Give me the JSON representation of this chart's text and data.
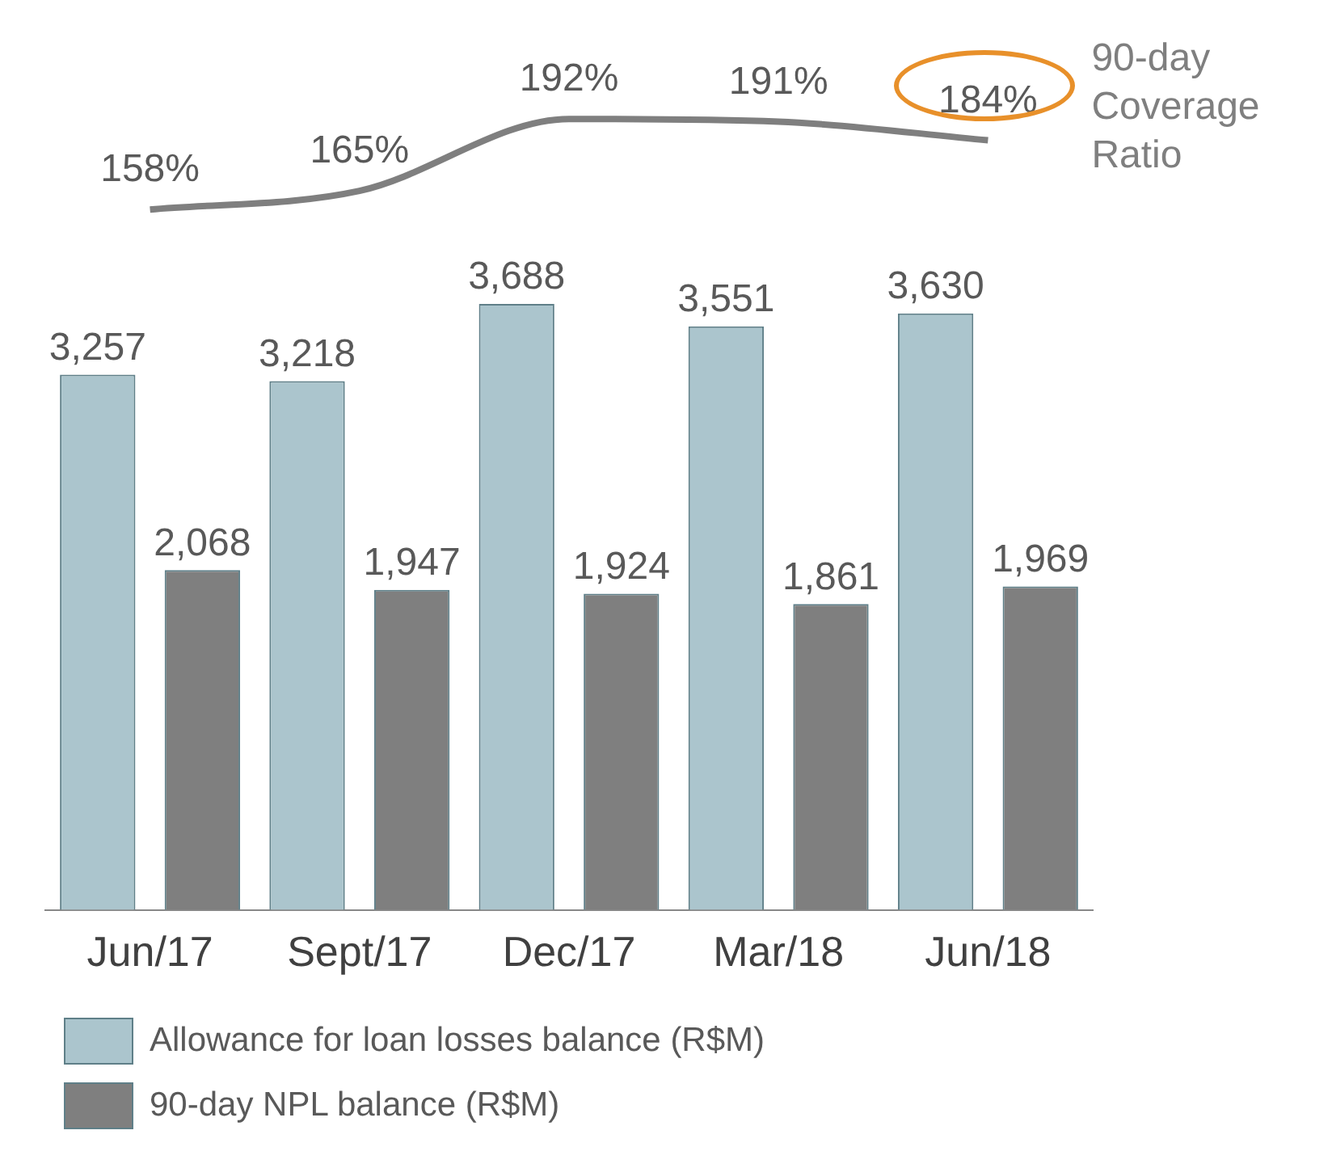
{
  "chart_data": [
    {
      "type": "line",
      "categories": [
        null,
        null,
        null,
        null,
        null
      ],
      "tick_labels": false,
      "grid": false,
      "marker": "none",
      "line_style": "solid",
      "series": [
        {
          "name": "90-day Coverage Ratio",
          "color": "#7f7f7f",
          "values": [
            158,
            165,
            192,
            191,
            184
          ],
          "value_labels": [
            "158%",
            "165%",
            "192%",
            "191%",
            "184%"
          ]
        }
      ]
    },
    {
      "type": "bar",
      "categories": [
        "Jun/17",
        "Sept/17",
        "Dec/17",
        "Mar/18",
        "Jun/18"
      ],
      "tick_labels": "x",
      "grid": false,
      "legend": "bottom left",
      "series": [
        {
          "name": "Allowance for loan losses balance (R$M)",
          "color": "#abc5cd",
          "values": [
            3257,
            3218,
            3688,
            3551,
            3630
          ],
          "value_labels": [
            "3,257",
            "3,218",
            "3,688",
            "3,551",
            "3,630"
          ]
        },
        {
          "name": "90-day NPL balance (R$M)",
          "color": "#7f7f7f",
          "values": [
            2068,
            1947,
            1924,
            1861,
            1969
          ],
          "value_labels": [
            "2,068",
            "1,947",
            "1,924",
            "1,861",
            "1,969"
          ]
        }
      ]
    }
  ]
}
